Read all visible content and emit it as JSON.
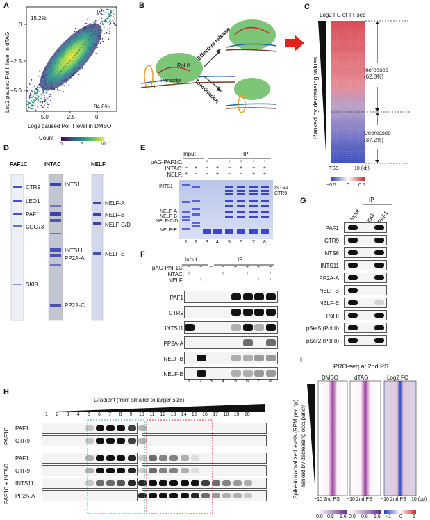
{
  "panels": {
    "A": "A",
    "B": "B",
    "C": "C",
    "D": "D",
    "E": "E",
    "F": "F",
    "G": "G",
    "H": "H",
    "I": "I"
  },
  "panelA": {
    "corner_top_left": "15.2%",
    "corner_bottom_right": "84.8%",
    "ylabel": "Log2 paused Pol II level in dTAG",
    "xlabel": "Log2 paused Pol II level in DMSO",
    "xticks": [
      "−5.0",
      "−2.5",
      "0"
    ],
    "yticks": [
      "0",
      "−2.5",
      "−5.0"
    ],
    "colorbar_label": "Count",
    "colorbar_ticks": [
      "0",
      "5",
      "10"
    ]
  },
  "panelB": {
    "label_polII": "Pol II",
    "label_transcript": "Transcript",
    "label_minus1": "−1",
    "arrow_top": "Effective release",
    "arrow_bottom": "Termination"
  },
  "panelC": {
    "title": "Log2 FC of TT-seq",
    "ylabel": "Ranked by decreasing values",
    "increased": "Increased",
    "increased_pct": "(62.8%)",
    "decreased": "Decreased",
    "decreased_pct": "(37.2%)",
    "x_left": "TSS",
    "x_right": "10 (kb)",
    "cbar_ticks": [
      "−0.5",
      "0",
      "0.5"
    ]
  },
  "panelD": {
    "titles": [
      "PAF1C",
      "INTAC",
      "NELF"
    ],
    "paf1c_labels": [
      "CTR9",
      "LEO1",
      "PAF1",
      "CDC73",
      "SKI8"
    ],
    "intac_labels": [
      "INTS1",
      "INTS11",
      "PP2A-A",
      "PP2A-C"
    ],
    "nelf_labels": [
      "NELF-A",
      "NELF-B",
      "NELF-C/D",
      "NELF-E"
    ]
  },
  "panelE": {
    "header_input": "Input",
    "header_ip": "IP",
    "rows": [
      "pAG-PAF1C:",
      "INTAC:",
      "NELF:"
    ],
    "row_signs": [
      [
        "−",
        "−",
        "+",
        "−",
        "+",
        "+",
        "+",
        "+"
      ],
      [
        "−",
        "+",
        "−",
        "+",
        "−",
        "+",
        "−",
        "+"
      ],
      [
        "+",
        "−",
        "−",
        "+",
        "−",
        "−",
        "+",
        "+"
      ]
    ],
    "left_labels": [
      "INTS1",
      "NELF-A",
      "NELF-B",
      "NELF-C/D",
      "NELF-E"
    ],
    "right_labels": [
      "INTS1",
      "CTR9"
    ],
    "lanes": [
      "1",
      "2",
      "3",
      "4",
      "5",
      "6",
      "7",
      "8"
    ]
  },
  "panelF": {
    "header_input": "Input",
    "header_ip": "IP",
    "rows": [
      "pAG-PAF1C:",
      "INTAC:",
      "NELF:"
    ],
    "row_signs": [
      [
        "−",
        "−",
        "−",
        "−",
        "+",
        "+",
        "+",
        "+"
      ],
      [
        "+",
        "−",
        "−",
        "+",
        "−",
        "+",
        "−",
        "+"
      ],
      [
        "−",
        "+",
        "−",
        "−",
        "−",
        "−",
        "+",
        "+"
      ]
    ],
    "blots": [
      "PAF1",
      "CTR9",
      "INTS11",
      "PP2A-A",
      "NELF-B",
      "NELF-E"
    ],
    "lanes": [
      "1",
      "2",
      "3",
      "4",
      "5",
      "6",
      "7",
      "8"
    ]
  },
  "panelG": {
    "header_ip": "IP",
    "cols": [
      "Input",
      "IgG",
      "PAF1"
    ],
    "blots": [
      "PAF1",
      "CTR9",
      "INTS6",
      "INTS11",
      "PP2A-A",
      "NELF-B",
      "NELF-E",
      "Pol II",
      "pSer5 (Pol II)",
      "pSer2 (Pol II)"
    ]
  },
  "panelH": {
    "gradient": "Gradient (from smaller to larger size)",
    "fractions": [
      "1",
      "2",
      "3",
      "4",
      "5",
      "6",
      "7",
      "8",
      "9",
      "10",
      "11",
      "12",
      "13",
      "14",
      "15",
      "16",
      "17",
      "18",
      "19",
      "20"
    ],
    "group1": "PAF1C",
    "group2": "PAF1C + INTAC",
    "group1_blots": [
      "PAF1",
      "CTR9"
    ],
    "group2_blots": [
      "PAF1",
      "CTR9",
      "INTS11",
      "PP2A-A"
    ]
  },
  "panelI": {
    "title": "PRO-seq at 2nd PS",
    "cols": [
      "DMSO",
      "dTAG",
      "Log2 FC"
    ],
    "ylabel1": "Spike-in normalized levels (RPM per bp)",
    "ylabel2": "ranked by decreasing occupancy",
    "xlab_left": "−10 2nd PS",
    "xlab_right": "10 (bp)",
    "cbar1": [
      "0.0",
      "0.8",
      "1.6"
    ],
    "cbar2": [
      "0.0",
      "0.8",
      "1.6"
    ],
    "cbar3": [
      "−1",
      "0",
      "1"
    ]
  },
  "colors": {
    "red": "#e2231a",
    "green": "#7cc576",
    "heatblue": "#3a4fc0",
    "gelblue": "#3a3ad0",
    "purple": "#6a2c8e"
  }
}
